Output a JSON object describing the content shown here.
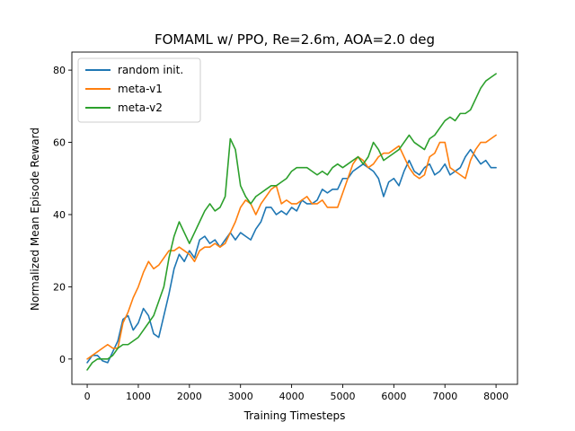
{
  "chart_data": {
    "type": "line",
    "title": "FOMAML w/ PPO, Re=2.6m, AOA=2.0 deg",
    "xlabel": "Training Timesteps",
    "ylabel": "Normalized Mean Episode Reward",
    "xlim": [
      -300,
      8420
    ],
    "ylim": [
      -7,
      85
    ],
    "xticks": [
      0,
      1000,
      2000,
      3000,
      4000,
      5000,
      6000,
      7000,
      8000
    ],
    "yticks": [
      0,
      20,
      40,
      60,
      80
    ],
    "grid": false,
    "legend_position": "top-left",
    "series": [
      {
        "name": "random init.",
        "color": "#1f77b4",
        "points": [
          [
            0,
            -1
          ],
          [
            100,
            1
          ],
          [
            200,
            1
          ],
          [
            300,
            -0.5
          ],
          [
            400,
            -1
          ],
          [
            500,
            2
          ],
          [
            600,
            5
          ],
          [
            700,
            11
          ],
          [
            800,
            12
          ],
          [
            900,
            8
          ],
          [
            1000,
            10
          ],
          [
            1100,
            14
          ],
          [
            1200,
            12
          ],
          [
            1300,
            7
          ],
          [
            1400,
            6
          ],
          [
            1500,
            12
          ],
          [
            1600,
            18
          ],
          [
            1700,
            25
          ],
          [
            1800,
            29
          ],
          [
            1900,
            27
          ],
          [
            2000,
            30
          ],
          [
            2100,
            28
          ],
          [
            2200,
            33
          ],
          [
            2300,
            34
          ],
          [
            2400,
            32
          ],
          [
            2500,
            33
          ],
          [
            2600,
            31
          ],
          [
            2700,
            33
          ],
          [
            2800,
            35
          ],
          [
            2900,
            33
          ],
          [
            3000,
            35
          ],
          [
            3100,
            34
          ],
          [
            3200,
            33
          ],
          [
            3300,
            36
          ],
          [
            3400,
            38
          ],
          [
            3500,
            42
          ],
          [
            3600,
            42
          ],
          [
            3700,
            40
          ],
          [
            3800,
            41
          ],
          [
            3900,
            40
          ],
          [
            4000,
            42
          ],
          [
            4100,
            41
          ],
          [
            4200,
            44
          ],
          [
            4300,
            43
          ],
          [
            4400,
            43
          ],
          [
            4500,
            44
          ],
          [
            4600,
            47
          ],
          [
            4700,
            46
          ],
          [
            4800,
            47
          ],
          [
            4900,
            47
          ],
          [
            5000,
            50
          ],
          [
            5100,
            50
          ],
          [
            5200,
            52
          ],
          [
            5300,
            53
          ],
          [
            5400,
            54
          ],
          [
            5500,
            53
          ],
          [
            5600,
            52
          ],
          [
            5700,
            50
          ],
          [
            5800,
            45
          ],
          [
            5900,
            49
          ],
          [
            6000,
            50
          ],
          [
            6100,
            48
          ],
          [
            6200,
            52
          ],
          [
            6300,
            55
          ],
          [
            6400,
            52
          ],
          [
            6500,
            51
          ],
          [
            6600,
            53
          ],
          [
            6700,
            54
          ],
          [
            6800,
            51
          ],
          [
            6900,
            52
          ],
          [
            7000,
            54
          ],
          [
            7100,
            51
          ],
          [
            7200,
            52
          ],
          [
            7300,
            53
          ],
          [
            7400,
            56
          ],
          [
            7500,
            58
          ],
          [
            7600,
            56
          ],
          [
            7700,
            54
          ],
          [
            7800,
            55
          ],
          [
            7900,
            53
          ],
          [
            8000,
            53
          ]
        ]
      },
      {
        "name": "meta-v1",
        "color": "#ff7f0e",
        "points": [
          [
            0,
            0
          ],
          [
            100,
            1
          ],
          [
            200,
            2
          ],
          [
            300,
            3
          ],
          [
            400,
            4
          ],
          [
            500,
            3
          ],
          [
            600,
            3
          ],
          [
            700,
            10
          ],
          [
            800,
            13
          ],
          [
            900,
            17
          ],
          [
            1000,
            20
          ],
          [
            1100,
            24
          ],
          [
            1200,
            27
          ],
          [
            1300,
            25
          ],
          [
            1400,
            26
          ],
          [
            1500,
            28
          ],
          [
            1600,
            30
          ],
          [
            1700,
            30
          ],
          [
            1800,
            31
          ],
          [
            1900,
            30
          ],
          [
            2000,
            29
          ],
          [
            2100,
            27
          ],
          [
            2200,
            30
          ],
          [
            2300,
            31
          ],
          [
            2400,
            31
          ],
          [
            2500,
            32
          ],
          [
            2600,
            31
          ],
          [
            2700,
            32
          ],
          [
            2800,
            35
          ],
          [
            2900,
            38
          ],
          [
            3000,
            42
          ],
          [
            3100,
            44
          ],
          [
            3200,
            43
          ],
          [
            3300,
            40
          ],
          [
            3400,
            43
          ],
          [
            3500,
            45
          ],
          [
            3600,
            47
          ],
          [
            3700,
            48
          ],
          [
            3800,
            43
          ],
          [
            3900,
            44
          ],
          [
            4000,
            43
          ],
          [
            4100,
            43
          ],
          [
            4200,
            44
          ],
          [
            4300,
            45
          ],
          [
            4400,
            43
          ],
          [
            4500,
            43
          ],
          [
            4600,
            44
          ],
          [
            4700,
            42
          ],
          [
            4800,
            42
          ],
          [
            4900,
            42
          ],
          [
            5000,
            46
          ],
          [
            5100,
            50
          ],
          [
            5200,
            54
          ],
          [
            5300,
            56
          ],
          [
            5400,
            55
          ],
          [
            5500,
            53
          ],
          [
            5600,
            54
          ],
          [
            5700,
            56
          ],
          [
            5800,
            57
          ],
          [
            5900,
            57
          ],
          [
            6000,
            58
          ],
          [
            6100,
            59
          ],
          [
            6200,
            56
          ],
          [
            6300,
            53
          ],
          [
            6400,
            51
          ],
          [
            6500,
            50
          ],
          [
            6600,
            51
          ],
          [
            6700,
            56
          ],
          [
            6800,
            57
          ],
          [
            6900,
            60
          ],
          [
            7000,
            60
          ],
          [
            7100,
            53
          ],
          [
            7200,
            52
          ],
          [
            7300,
            51
          ],
          [
            7400,
            50
          ],
          [
            7500,
            55
          ],
          [
            7600,
            58
          ],
          [
            7700,
            60
          ],
          [
            7800,
            60
          ],
          [
            7900,
            61
          ],
          [
            8000,
            62
          ]
        ]
      },
      {
        "name": "meta-v2",
        "color": "#2ca02c",
        "points": [
          [
            0,
            -3
          ],
          [
            100,
            -1
          ],
          [
            200,
            0
          ],
          [
            300,
            0
          ],
          [
            400,
            0
          ],
          [
            500,
            1
          ],
          [
            600,
            3
          ],
          [
            700,
            4
          ],
          [
            800,
            4
          ],
          [
            900,
            5
          ],
          [
            1000,
            6
          ],
          [
            1100,
            8
          ],
          [
            1200,
            10
          ],
          [
            1300,
            12
          ],
          [
            1400,
            16
          ],
          [
            1500,
            20
          ],
          [
            1600,
            28
          ],
          [
            1700,
            34
          ],
          [
            1800,
            38
          ],
          [
            1900,
            35
          ],
          [
            2000,
            32
          ],
          [
            2100,
            35
          ],
          [
            2200,
            38
          ],
          [
            2300,
            41
          ],
          [
            2400,
            43
          ],
          [
            2500,
            41
          ],
          [
            2600,
            42
          ],
          [
            2700,
            45
          ],
          [
            2800,
            61
          ],
          [
            2900,
            58
          ],
          [
            3000,
            48
          ],
          [
            3100,
            45
          ],
          [
            3200,
            43
          ],
          [
            3300,
            45
          ],
          [
            3400,
            46
          ],
          [
            3500,
            47
          ],
          [
            3600,
            48
          ],
          [
            3700,
            48
          ],
          [
            3800,
            49
          ],
          [
            3900,
            50
          ],
          [
            4000,
            52
          ],
          [
            4100,
            53
          ],
          [
            4200,
            53
          ],
          [
            4300,
            53
          ],
          [
            4400,
            52
          ],
          [
            4500,
            51
          ],
          [
            4600,
            52
          ],
          [
            4700,
            51
          ],
          [
            4800,
            53
          ],
          [
            4900,
            54
          ],
          [
            5000,
            53
          ],
          [
            5100,
            54
          ],
          [
            5200,
            55
          ],
          [
            5300,
            56
          ],
          [
            5400,
            54
          ],
          [
            5500,
            56
          ],
          [
            5600,
            60
          ],
          [
            5700,
            58
          ],
          [
            5800,
            55
          ],
          [
            5900,
            56
          ],
          [
            6000,
            57
          ],
          [
            6100,
            58
          ],
          [
            6200,
            60
          ],
          [
            6300,
            62
          ],
          [
            6400,
            60
          ],
          [
            6500,
            59
          ],
          [
            6600,
            58
          ],
          [
            6700,
            61
          ],
          [
            6800,
            62
          ],
          [
            6900,
            64
          ],
          [
            7000,
            66
          ],
          [
            7100,
            67
          ],
          [
            7200,
            66
          ],
          [
            7300,
            68
          ],
          [
            7400,
            68
          ],
          [
            7500,
            69
          ],
          [
            7600,
            72
          ],
          [
            7700,
            75
          ],
          [
            7800,
            77
          ],
          [
            7900,
            78
          ],
          [
            8000,
            79
          ]
        ]
      }
    ]
  }
}
